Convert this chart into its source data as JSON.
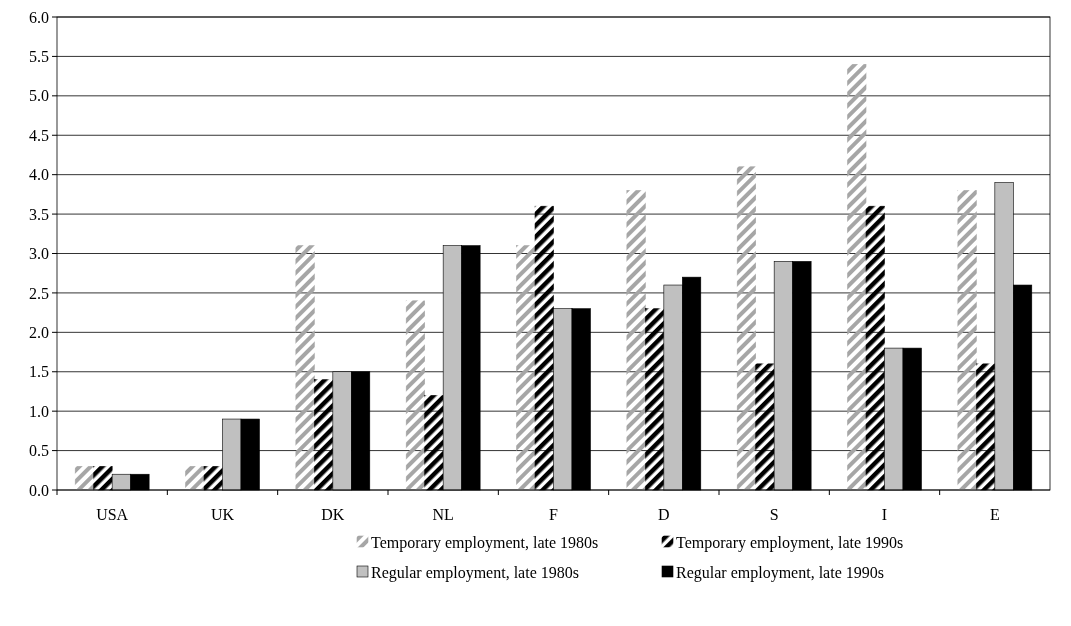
{
  "chart_data": {
    "type": "bar",
    "categories": [
      "USA",
      "UK",
      "DK",
      "NL",
      "F",
      "D",
      "S",
      "I",
      "E"
    ],
    "series": [
      {
        "name": "Temporary employment, late 1980s",
        "color": "#a6a6a6",
        "values": [
          0.3,
          0.3,
          3.1,
          2.4,
          3.1,
          3.8,
          4.1,
          5.4,
          3.8
        ]
      },
      {
        "name": "Temporary employment, late 1990s",
        "color": "#000000",
        "values": [
          0.3,
          0.3,
          1.4,
          1.2,
          3.6,
          2.3,
          1.6,
          3.6,
          1.6
        ]
      },
      {
        "name": "Regular employment, late 1980s",
        "color": "#c0c0c0",
        "values": [
          0.2,
          0.9,
          1.5,
          3.1,
          2.3,
          2.6,
          2.9,
          1.8,
          3.9
        ]
      },
      {
        "name": "Regular employment, late 1990s",
        "color": "#000000",
        "values": [
          0.2,
          0.9,
          1.5,
          3.1,
          2.3,
          2.7,
          2.9,
          1.8,
          2.6
        ]
      }
    ],
    "ylim": [
      0,
      6
    ],
    "yticks": [
      {
        "value": 0,
        "label": "0.0"
      },
      {
        "value": 0.5,
        "label": "0.5"
      },
      {
        "value": 1,
        "label": "1.0"
      },
      {
        "value": 1.5,
        "label": "1.5"
      },
      {
        "value": 2,
        "label": "2.0"
      },
      {
        "value": 2.5,
        "label": "2.5"
      },
      {
        "value": 3,
        "label": "3.0"
      },
      {
        "value": 3.5,
        "label": "3.5"
      },
      {
        "value": 4,
        "label": "4.0"
      },
      {
        "value": 4.5,
        "label": "4.5"
      },
      {
        "value": 5,
        "label": "5.0"
      },
      {
        "value": 5.5,
        "label": "5.5"
      },
      {
        "value": 6,
        "label": "6.0"
      }
    ],
    "grid": "y",
    "legend": "bottom"
  }
}
